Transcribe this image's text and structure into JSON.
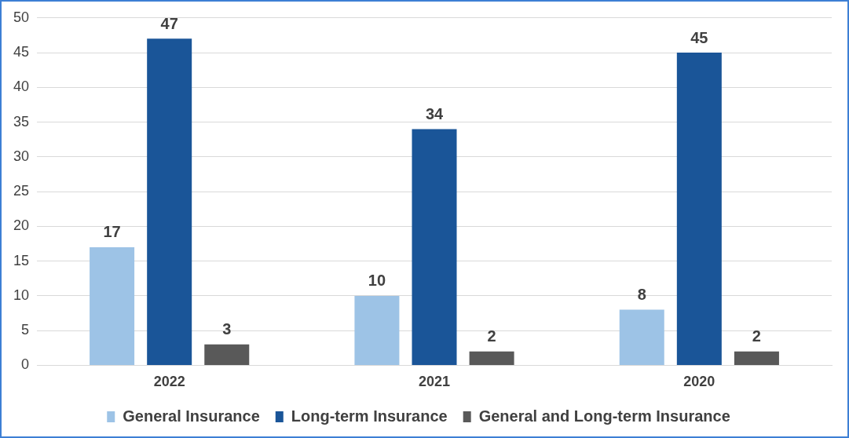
{
  "chart_data": {
    "type": "bar",
    "categories": [
      "2022",
      "2021",
      "2020"
    ],
    "series": [
      {
        "name": "General Insurance",
        "color": "#9dc3e6",
        "values": [
          17,
          10,
          8
        ]
      },
      {
        "name": "Long-term Insurance",
        "color": "#1a5598",
        "values": [
          47,
          34,
          45
        ]
      },
      {
        "name": "General and Long-term Insurance",
        "color": "#595959",
        "values": [
          3,
          2,
          2
        ]
      }
    ],
    "ylim": [
      0,
      50
    ],
    "yticks": [
      0,
      5,
      10,
      15,
      20,
      25,
      30,
      35,
      40,
      45,
      50
    ],
    "grid": "y",
    "legend": "bottom",
    "data_labels": true
  }
}
